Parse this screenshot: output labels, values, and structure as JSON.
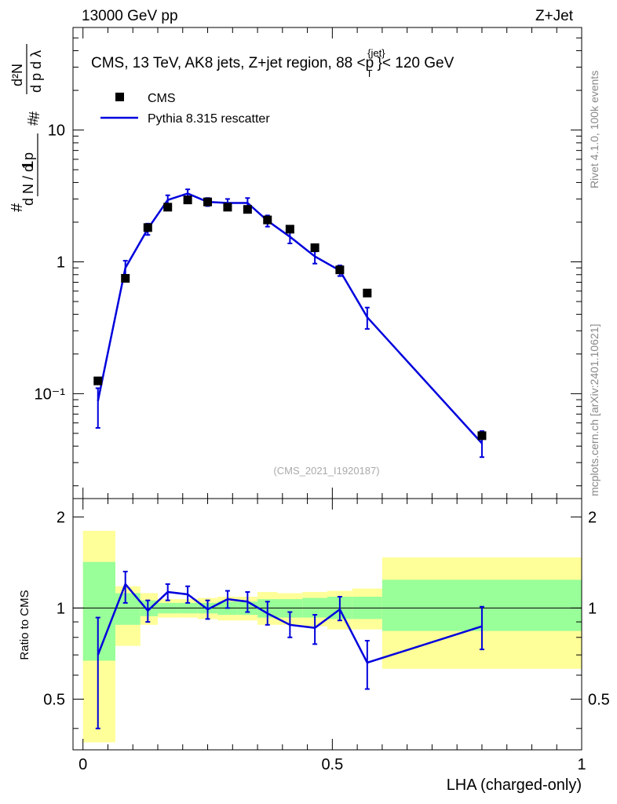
{
  "chart_data": [
    {
      "type": "scatter",
      "panel": "main",
      "top_left_label": "13000 GeV pp",
      "top_right_label": "Z+Jet",
      "title": "CMS, 13 TeV, AK8 jets, Z+jet region, 88 <p",
      "title_sup": "{jet}",
      "title_sub": "T",
      "title_end": "}< 120 GeV",
      "analysis_id": "(CMS_2021_I1920187)",
      "ylabel": "1 / dN/dpT · d²N / dpT dλ",
      "y_scale": "log",
      "ylim": [
        0.016,
        60
      ],
      "y_tick_labels": [
        "10⁻¹",
        "1",
        "10"
      ],
      "y_tick_values": [
        0.1,
        1,
        10
      ],
      "xlim": [
        -0.02,
        1.0
      ],
      "legend": [
        {
          "label": "CMS",
          "marker": "square",
          "color": "#000000"
        },
        {
          "label": "Pythia 8.315 rescatter",
          "marker": "line",
          "color": "#0000dd"
        }
      ],
      "series": [
        {
          "name": "CMS",
          "x": [
            0.03,
            0.085,
            0.13,
            0.17,
            0.21,
            0.25,
            0.29,
            0.33,
            0.37,
            0.415,
            0.465,
            0.515,
            0.57,
            0.8
          ],
          "values": [
            0.125,
            0.75,
            1.82,
            2.6,
            2.95,
            2.85,
            2.6,
            2.5,
            2.08,
            1.77,
            1.28,
            0.87,
            0.58,
            0.048
          ]
        },
        {
          "name": "Pythia 8.315 rescatter",
          "x": [
            0.03,
            0.085,
            0.13,
            0.17,
            0.21,
            0.25,
            0.29,
            0.33,
            0.37,
            0.415,
            0.465,
            0.515,
            0.57,
            0.8
          ],
          "values": [
            0.088,
            0.9,
            1.78,
            2.95,
            3.3,
            2.85,
            2.8,
            2.8,
            2.05,
            1.55,
            1.1,
            0.86,
            0.38,
            0.042
          ],
          "err_low": [
            0.055,
            0.78,
            1.6,
            2.7,
            3.05,
            2.65,
            2.6,
            2.55,
            1.85,
            1.38,
            0.97,
            0.78,
            0.31,
            0.033
          ],
          "err_high": [
            0.11,
            1.02,
            1.95,
            3.2,
            3.55,
            3.05,
            3.0,
            3.05,
            2.25,
            1.72,
            1.2,
            0.94,
            0.45,
            0.052
          ]
        }
      ]
    },
    {
      "type": "line",
      "panel": "ratio",
      "ylabel": "Ratio to CMS",
      "xlabel": "LHA (charged-only)",
      "ylim": [
        0.34,
        2.3
      ],
      "xlim": [
        -0.02,
        1.0
      ],
      "y_tick_labels": [
        "0.5",
        "1",
        "2"
      ],
      "y_tick_values": [
        0.5,
        1,
        2
      ],
      "x_tick_labels": [
        "0",
        "0.5",
        "1"
      ],
      "x_tick_values": [
        0,
        0.5,
        1
      ],
      "bin_edges": [
        0.0,
        0.065,
        0.115,
        0.15,
        0.19,
        0.23,
        0.27,
        0.31,
        0.35,
        0.39,
        0.44,
        0.49,
        0.54,
        0.6,
        1.0
      ],
      "band_outer_low": [
        0.36,
        0.75,
        0.88,
        0.93,
        0.93,
        0.92,
        0.91,
        0.91,
        0.88,
        0.88,
        0.87,
        0.85,
        0.85,
        0.63
      ],
      "band_outer_high": [
        1.8,
        1.18,
        1.12,
        1.07,
        1.07,
        1.08,
        1.09,
        1.09,
        1.13,
        1.12,
        1.13,
        1.14,
        1.16,
        1.47
      ],
      "band_inner_low": [
        0.67,
        0.88,
        0.94,
        0.96,
        0.96,
        0.96,
        0.95,
        0.95,
        0.93,
        0.93,
        0.93,
        0.92,
        0.92,
        0.84
      ],
      "band_inner_high": [
        1.42,
        1.12,
        1.06,
        1.04,
        1.04,
        1.04,
        1.05,
        1.05,
        1.07,
        1.07,
        1.08,
        1.09,
        1.09,
        1.24
      ],
      "series": [
        {
          "name": "Pythia 8.315 rescatter / CMS",
          "x": [
            0.03,
            0.085,
            0.13,
            0.17,
            0.21,
            0.25,
            0.29,
            0.33,
            0.37,
            0.415,
            0.465,
            0.515,
            0.57,
            0.8
          ],
          "values": [
            0.7,
            1.2,
            0.98,
            1.13,
            1.11,
            0.99,
            1.07,
            1.05,
            0.96,
            0.88,
            0.86,
            0.99,
            0.66,
            0.87
          ],
          "err_low": [
            0.4,
            1.04,
            0.9,
            1.06,
            1.04,
            0.92,
            1.0,
            0.97,
            0.88,
            0.8,
            0.76,
            0.91,
            0.54,
            0.73
          ],
          "err_high": [
            0.93,
            1.32,
            1.06,
            1.2,
            1.18,
            1.06,
            1.14,
            1.13,
            1.05,
            0.97,
            0.95,
            1.09,
            0.78,
            1.01
          ]
        }
      ]
    }
  ],
  "side_labels": {
    "rivet": "Rivet 4.1.0,  100k events",
    "mcplots": "mcplots.cern.ch [arXiv:2401.10621]"
  },
  "colors": {
    "mc": "#0000dd",
    "data": "#000000",
    "band_outer": "#ffff99",
    "band_inner": "#99ff99",
    "side_text": "#888888",
    "analysis_text": "#aaaaaa"
  }
}
